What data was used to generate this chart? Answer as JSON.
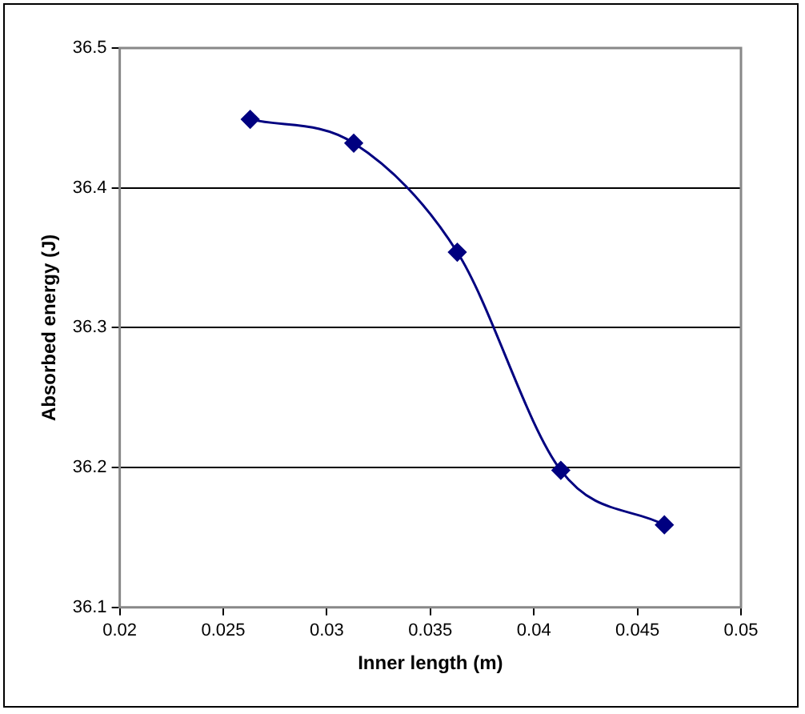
{
  "chart_data": {
    "type": "line",
    "xlabel": "Inner length (m)",
    "ylabel": "Absorbed energy (J)",
    "x": [
      0.0263,
      0.0313,
      0.0363,
      0.0413,
      0.0463
    ],
    "series": [
      {
        "color": "#000080",
        "values": [
          36.449,
          36.432,
          36.354,
          36.198,
          36.159
        ]
      }
    ],
    "xlim": [
      0.02,
      0.05
    ],
    "xticks": [
      0.02,
      0.025,
      0.03,
      0.035,
      0.04,
      0.045,
      0.05
    ],
    "ylim": [
      36.1,
      36.5
    ],
    "yticks": [
      36.1,
      36.2,
      36.3,
      36.4,
      36.5
    ],
    "grid": "y",
    "marker": "diamond",
    "line_style": "solid"
  }
}
